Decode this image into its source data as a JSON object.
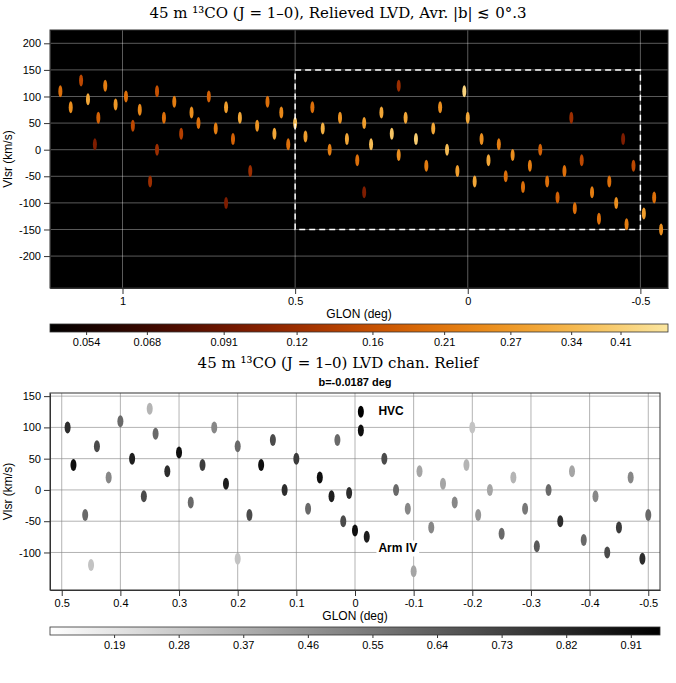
{
  "chart_data": [
    {
      "type": "scatter",
      "title": "45 m ¹³CO (J = 1–0), Relieved LVD, Avr. |b| ≲ 0°.3",
      "x_label": "GLON (deg)",
      "y_label": "Vlsr (km/s)",
      "xlim": [
        1.21,
        -0.58
      ],
      "xticks": [
        1,
        0.5,
        0,
        -0.5
      ],
      "ylim": [
        -260,
        225
      ],
      "yticks": [
        200,
        150,
        100,
        50,
        0,
        -50,
        -100,
        -150,
        -200
      ],
      "grid": true,
      "x": [
        1.18,
        1.15,
        1.12,
        1.1,
        1.07,
        1.05,
        1.02,
        0.99,
        0.97,
        0.95,
        0.92,
        0.9,
        0.88,
        1.08,
        0.85,
        0.83,
        0.8,
        0.78,
        0.75,
        0.73,
        0.7,
        0.68,
        0.66,
        0.63,
        0.61,
        0.58,
        0.56,
        0.54,
        0.52,
        0.5,
        0.47,
        0.45,
        0.42,
        0.4,
        0.37,
        0.35,
        0.32,
        0.3,
        0.28,
        0.25,
        0.22,
        0.2,
        0.18,
        0.15,
        0.12,
        0.1,
        0.08,
        0.06,
        0.03,
        0.01,
        0.0,
        -0.02,
        -0.04,
        -0.06,
        -0.09,
        -0.11,
        -0.13,
        -0.16,
        -0.18,
        -0.21,
        -0.23,
        -0.26,
        -0.28,
        -0.31,
        -0.33,
        -0.36,
        -0.38,
        -0.41,
        -0.43,
        -0.46,
        -0.48,
        -0.51,
        -0.54,
        -0.56,
        0.3,
        0.7,
        0.2,
        -0.3,
        0.9,
        -0.45
      ],
      "y": [
        110,
        80,
        130,
        95,
        60,
        120,
        85,
        100,
        45,
        75,
        -60,
        110,
        60,
        10,
        90,
        30,
        70,
        50,
        100,
        40,
        80,
        20,
        60,
        -40,
        45,
        90,
        30,
        70,
        10,
        50,
        25,
        80,
        40,
        0,
        60,
        20,
        -20,
        50,
        10,
        70,
        30,
        -10,
        60,
        20,
        -30,
        40,
        80,
        0,
        -40,
        110,
        60,
        -60,
        20,
        -20,
        10,
        -50,
        -10,
        -70,
        -30,
        0,
        -60,
        -90,
        -40,
        -110,
        -20,
        -80,
        -130,
        -60,
        -100,
        -140,
        -30,
        -120,
        -90,
        -150,
        -80,
        -100,
        120,
        60,
        0,
        20
      ],
      "values": [
        0.2,
        0.25,
        0.15,
        0.3,
        0.18,
        0.22,
        0.27,
        0.2,
        0.15,
        0.24,
        0.12,
        0.16,
        0.2,
        0.1,
        0.22,
        0.14,
        0.25,
        0.2,
        0.18,
        0.22,
        0.28,
        0.18,
        0.3,
        0.12,
        0.26,
        0.2,
        0.3,
        0.24,
        0.2,
        0.35,
        0.28,
        0.2,
        0.32,
        0.22,
        0.26,
        0.3,
        0.2,
        0.28,
        0.35,
        0.3,
        0.38,
        0.25,
        0.3,
        0.4,
        0.22,
        0.3,
        0.25,
        0.35,
        0.28,
        0.42,
        0.3,
        0.3,
        0.25,
        0.3,
        0.22,
        0.2,
        0.25,
        0.2,
        0.22,
        0.18,
        0.2,
        0.18,
        0.2,
        0.2,
        0.15,
        0.22,
        0.2,
        0.2,
        0.25,
        0.22,
        0.15,
        0.28,
        0.2,
        0.25,
        0.1,
        0.1,
        0.12,
        0.12,
        0.12,
        0.1
      ],
      "colorbar": {
        "range": [
          0.047,
          0.49
        ],
        "ticks": [
          0.054,
          0.068,
          0.091,
          0.12,
          0.16,
          0.21,
          0.27,
          0.34,
          0.41
        ]
      },
      "zoom_box": {
        "xlim": [
          0.5,
          -0.5
        ],
        "ylim": [
          -150,
          150
        ]
      }
    },
    {
      "type": "scatter",
      "title": "45 m ¹³CO (J = 1–0) LVD chan. Relief",
      "subtitle": "b=-0.0187 deg",
      "x_label": "GLON (deg)",
      "y_label": "Vlsr (km/s)",
      "xlim": [
        0.52,
        -0.52
      ],
      "xticks": [
        0.5,
        0.4,
        0.3,
        0.2,
        0.1,
        0,
        -0.1,
        -0.2,
        -0.3,
        -0.4,
        -0.5
      ],
      "ylim": [
        -160,
        155
      ],
      "yticks": [
        150,
        100,
        50,
        0,
        -50,
        -100
      ],
      "grid": true,
      "x": [
        0.49,
        0.48,
        0.46,
        0.44,
        0.42,
        0.4,
        0.38,
        0.36,
        0.34,
        0.32,
        0.3,
        0.28,
        0.26,
        0.24,
        0.22,
        0.2,
        0.18,
        0.16,
        0.14,
        0.12,
        0.1,
        0.08,
        0.06,
        0.04,
        0.02,
        0.01,
        -0.01,
        -0.01,
        0.0,
        0.03,
        -0.02,
        -0.05,
        -0.07,
        -0.09,
        -0.11,
        -0.13,
        -0.15,
        -0.17,
        -0.19,
        -0.21,
        -0.23,
        -0.25,
        -0.27,
        -0.29,
        -0.31,
        -0.33,
        -0.35,
        -0.37,
        -0.39,
        -0.41,
        -0.43,
        -0.45,
        -0.47,
        -0.49,
        -0.5,
        0.45,
        0.2,
        -0.1,
        0.35,
        -0.2
      ],
      "y": [
        100,
        40,
        -40,
        70,
        20,
        110,
        50,
        -10,
        90,
        30,
        60,
        -20,
        40,
        100,
        10,
        70,
        -40,
        40,
        80,
        0,
        50,
        -30,
        20,
        -10,
        -50,
        -5,
        125,
        95,
        -65,
        80,
        -75,
        50,
        0,
        -30,
        30,
        -60,
        10,
        -20,
        40,
        -40,
        0,
        -70,
        20,
        -30,
        -90,
        0,
        -50,
        30,
        -80,
        -10,
        -100,
        -60,
        20,
        -110,
        -40,
        -120,
        -110,
        -130,
        130,
        100
      ],
      "values": [
        0.8,
        0.9,
        0.6,
        0.7,
        0.5,
        0.6,
        0.85,
        0.7,
        0.6,
        0.8,
        0.9,
        0.6,
        0.75,
        0.5,
        0.85,
        0.6,
        0.7,
        0.9,
        0.7,
        0.8,
        0.75,
        0.6,
        0.9,
        0.85,
        0.7,
        0.8,
        0.95,
        0.9,
        0.9,
        0.6,
        0.85,
        0.7,
        0.6,
        0.5,
        0.4,
        0.5,
        0.4,
        0.5,
        0.35,
        0.45,
        0.4,
        0.6,
        0.35,
        0.55,
        0.65,
        0.6,
        0.8,
        0.4,
        0.6,
        0.5,
        0.7,
        0.75,
        0.5,
        0.8,
        0.6,
        0.3,
        0.3,
        0.4,
        0.35,
        0.3
      ],
      "colorbar": {
        "range": [
          0.1,
          0.95
        ],
        "ticks": [
          0.19,
          0.28,
          0.37,
          0.46,
          0.55,
          0.64,
          0.73,
          0.82,
          0.91
        ]
      },
      "annotations": [
        {
          "text": "HVC",
          "x": -0.04,
          "y": 120
        },
        {
          "text": "Arm IV",
          "x": -0.04,
          "y": -100
        }
      ]
    }
  ]
}
